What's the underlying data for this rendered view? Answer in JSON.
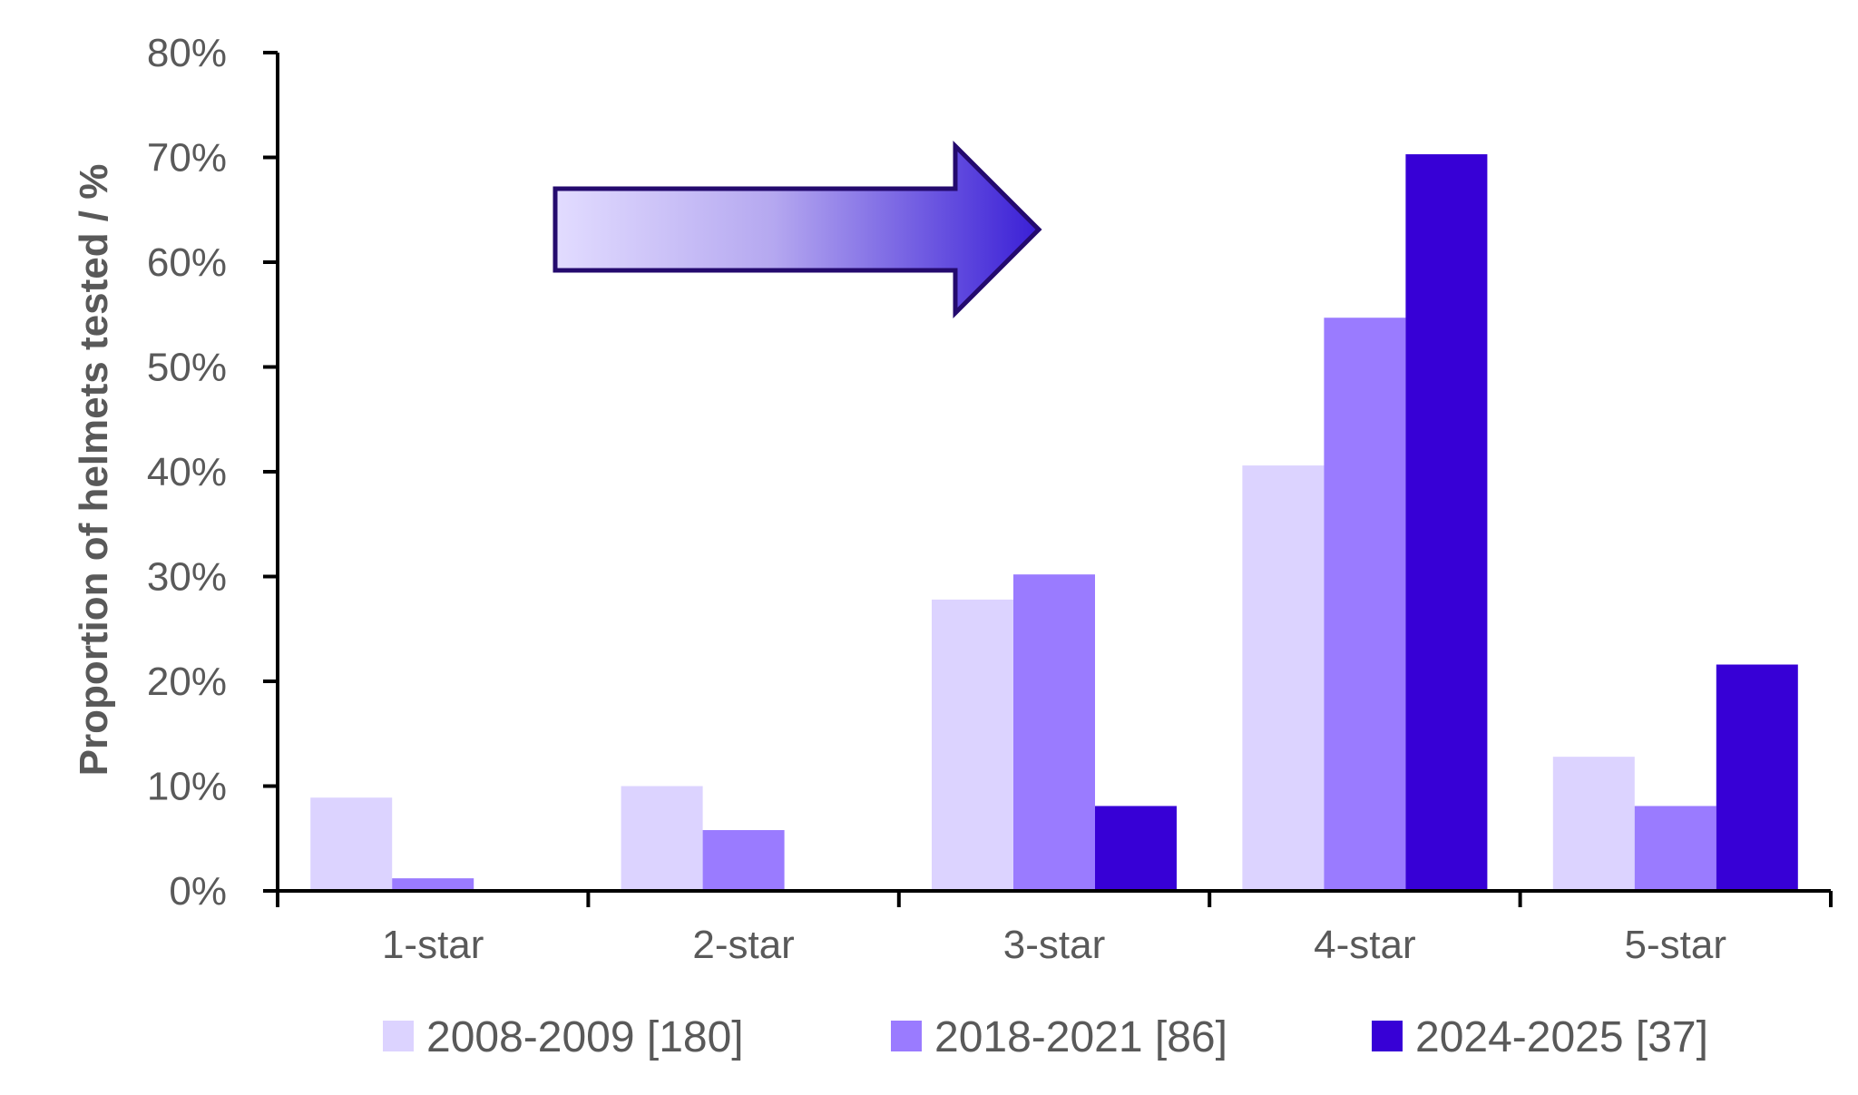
{
  "chart_data": {
    "type": "bar",
    "title": "",
    "xlabel": "",
    "ylabel": "Proportion of helmets tested / %",
    "ylim": [
      0,
      80
    ],
    "y_ticks": [
      "0%",
      "10%",
      "20%",
      "30%",
      "40%",
      "50%",
      "60%",
      "70%",
      "80%"
    ],
    "y_tick_values": [
      0,
      10,
      20,
      30,
      40,
      50,
      60,
      70,
      80
    ],
    "categories": [
      "1-star",
      "2-star",
      "3-star",
      "4-star",
      "5-star"
    ],
    "series": [
      {
        "name": "2008-2009 [180]",
        "color": "#DCD3FF",
        "values": [
          8.9,
          10.0,
          27.8,
          40.6,
          12.8
        ]
      },
      {
        "name": "2018-2021 [86]",
        "color": "#9A7BFF",
        "values": [
          1.2,
          5.8,
          30.2,
          54.7,
          8.1
        ]
      },
      {
        "name": "2024-2025 [37]",
        "color": "#3700D6",
        "values": [
          0,
          0,
          8.1,
          70.3,
          21.6
        ]
      }
    ],
    "legend_position": "bottom",
    "grid": false,
    "annotation": {
      "type": "gradient-arrow",
      "direction": "right",
      "color_from": "#E2DCFF",
      "color_to": "#3A1FD6",
      "outline": "#240A6E"
    }
  }
}
